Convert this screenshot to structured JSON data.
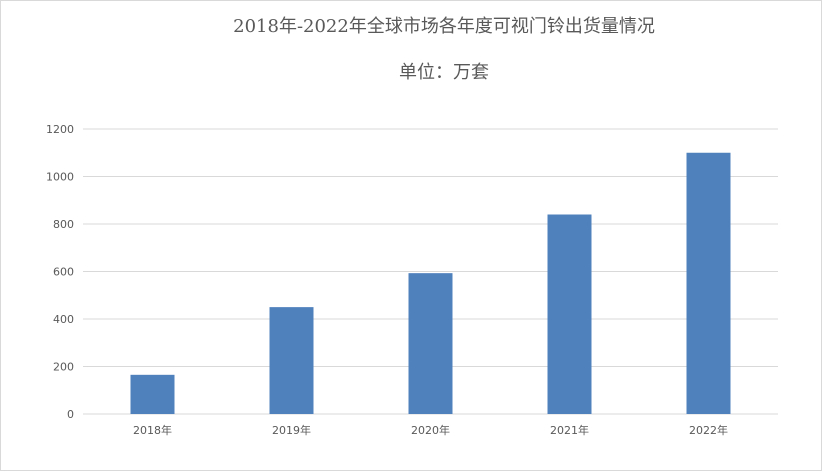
{
  "chart_data": {
    "type": "bar",
    "title": "2018年-2022年全球市场各年度可视门铃出货量情况",
    "subtitle": "单位：万套",
    "categories": [
      "2018年",
      "2019年",
      "2020年",
      "2021年",
      "2022年"
    ],
    "series": [
      {
        "values": [
          165,
          450,
          593,
          840,
          1100
        ],
        "color": "#4f81bd"
      }
    ],
    "ylim": [
      0,
      1200
    ],
    "yticks": [
      0,
      200,
      400,
      600,
      800,
      1000,
      1200
    ],
    "grid": true,
    "legend": "none"
  }
}
